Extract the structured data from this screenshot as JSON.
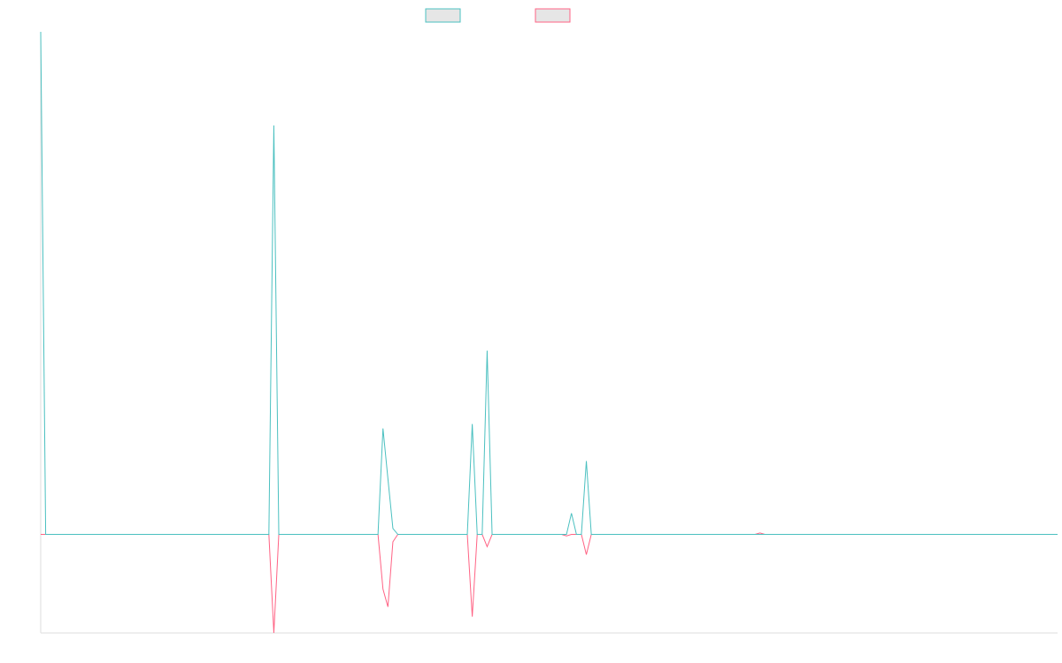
{
  "chart_data": {
    "type": "line",
    "x": [
      0,
      1,
      46,
      47,
      48,
      68,
      69,
      70,
      71,
      72,
      86,
      87,
      88,
      89,
      90,
      91,
      105,
      106,
      107,
      108,
      109,
      110,
      111,
      144,
      145,
      146,
      205
    ],
    "xlim": [
      0,
      205
    ],
    "ylim": [
      -20,
      102
    ],
    "series": [
      {
        "color": "#4bc0c0",
        "values": [
          102,
          0,
          0,
          83,
          0,
          0,
          21.5,
          11.3,
          1.2,
          0,
          0,
          22.4,
          0,
          0,
          37.3,
          0,
          0,
          0,
          4.3,
          0,
          0,
          14.9,
          0,
          0,
          0,
          0,
          0
        ]
      },
      {
        "color": "#ff6384",
        "values": [
          0,
          0,
          0,
          -20,
          0,
          0,
          -11.1,
          -14.7,
          -1.5,
          0,
          0,
          -16.7,
          0,
          0,
          -2.5,
          0,
          0,
          -0.3,
          0,
          0,
          0,
          -4.1,
          0,
          0,
          0.3,
          0,
          0
        ]
      }
    ]
  }
}
